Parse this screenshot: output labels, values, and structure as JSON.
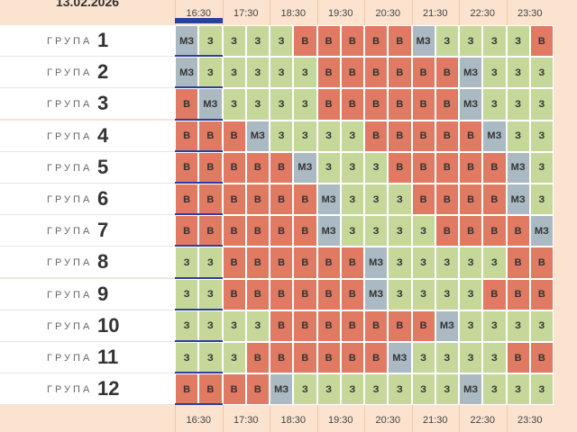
{
  "date": "13.02.2026",
  "hours": [
    "16:30",
    "17:30",
    "18:30",
    "19:30",
    "20:30",
    "21:30",
    "22:30",
    "23:30"
  ],
  "colors": {
    "В": "#e07a63",
    "З": "#c5d89a",
    "МЗ": "#abb9c3"
  },
  "groups": [
    {
      "label": "ГРУПА",
      "number": "1",
      "cells": [
        "МЗ",
        "З",
        "З",
        "З",
        "З",
        "В",
        "В",
        "В",
        "В",
        "В",
        "МЗ",
        "З",
        "З",
        "З",
        "З",
        "В"
      ]
    },
    {
      "label": "ГРУПА",
      "number": "2",
      "cells": [
        "МЗ",
        "З",
        "З",
        "З",
        "З",
        "З",
        "В",
        "В",
        "В",
        "В",
        "В",
        "В",
        "МЗ",
        "З",
        "З",
        "З"
      ]
    },
    {
      "label": "ГРУПА",
      "number": "3",
      "cells": [
        "В",
        "МЗ",
        "З",
        "З",
        "З",
        "З",
        "В",
        "В",
        "В",
        "В",
        "В",
        "В",
        "МЗ",
        "З",
        "З",
        "З"
      ]
    },
    {
      "label": "ГРУПА",
      "number": "4",
      "cells": [
        "В",
        "В",
        "В",
        "МЗ",
        "З",
        "З",
        "З",
        "З",
        "В",
        "В",
        "В",
        "В",
        "В",
        "МЗ",
        "З",
        "З"
      ]
    },
    {
      "label": "ГРУПА",
      "number": "5",
      "cells": [
        "В",
        "В",
        "В",
        "В",
        "В",
        "МЗ",
        "З",
        "З",
        "З",
        "В",
        "В",
        "В",
        "В",
        "В",
        "МЗ",
        "З"
      ]
    },
    {
      "label": "ГРУПА",
      "number": "6",
      "cells": [
        "В",
        "В",
        "В",
        "В",
        "В",
        "В",
        "МЗ",
        "З",
        "З",
        "З",
        "В",
        "В",
        "В",
        "В",
        "МЗ",
        "З"
      ]
    },
    {
      "label": "ГРУПА",
      "number": "7",
      "cells": [
        "В",
        "В",
        "В",
        "В",
        "В",
        "В",
        "МЗ",
        "З",
        "З",
        "З",
        "З",
        "В",
        "В",
        "В",
        "В",
        "МЗ"
      ]
    },
    {
      "label": "ГРУПА",
      "number": "8",
      "cells": [
        "З",
        "З",
        "В",
        "В",
        "В",
        "В",
        "В",
        "В",
        "МЗ",
        "З",
        "З",
        "З",
        "З",
        "З",
        "В",
        "В"
      ]
    },
    {
      "label": "ГРУПА",
      "number": "9",
      "cells": [
        "З",
        "З",
        "В",
        "В",
        "В",
        "В",
        "В",
        "В",
        "МЗ",
        "З",
        "З",
        "З",
        "З",
        "В",
        "В",
        "В"
      ]
    },
    {
      "label": "ГРУПА",
      "number": "10",
      "cells": [
        "З",
        "З",
        "З",
        "З",
        "В",
        "В",
        "В",
        "В",
        "В",
        "В",
        "В",
        "МЗ",
        "З",
        "З",
        "З",
        "З"
      ]
    },
    {
      "label": "ГРУПА",
      "number": "11",
      "cells": [
        "З",
        "З",
        "З",
        "В",
        "В",
        "В",
        "В",
        "В",
        "В",
        "МЗ",
        "З",
        "З",
        "З",
        "З",
        "В",
        "В"
      ]
    },
    {
      "label": "ГРУПА",
      "number": "12",
      "cells": [
        "В",
        "В",
        "В",
        "В",
        "МЗ",
        "З",
        "З",
        "З",
        "З",
        "З",
        "З",
        "З",
        "МЗ",
        "З",
        "З",
        "З"
      ]
    }
  ]
}
